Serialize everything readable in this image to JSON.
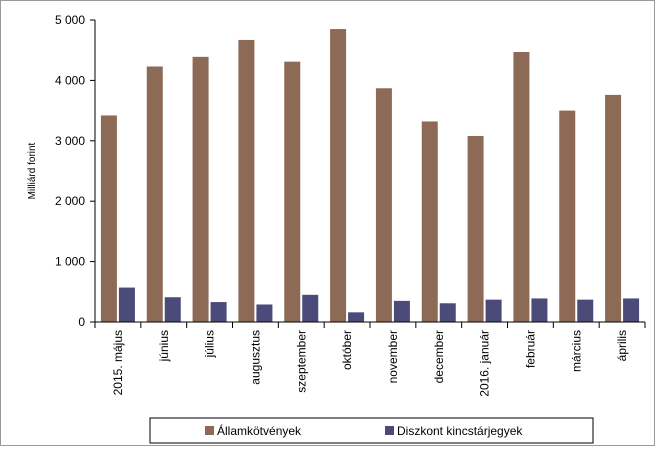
{
  "chart_data": {
    "type": "bar",
    "title": "",
    "xlabel": "",
    "ylabel": "Milliárd forint",
    "ylim": [
      0,
      5000
    ],
    "yticks": [
      0,
      1000,
      2000,
      3000,
      4000,
      5000
    ],
    "ytick_labels": [
      "0",
      "1 000",
      "2 000",
      "3 000",
      "4 000",
      "5 000"
    ],
    "grid": false,
    "legend_position": "bottom",
    "categories": [
      "2015. május",
      "június",
      "július",
      "augusztus",
      "szeptember",
      "október",
      "november",
      "december",
      "2016. január",
      "február",
      "március",
      "április"
    ],
    "series": [
      {
        "name": "Államkötvények",
        "color": "#8c6a55",
        "values": [
          3420,
          4230,
          4390,
          4670,
          4310,
          4850,
          3870,
          3320,
          3080,
          4470,
          3500,
          3760
        ]
      },
      {
        "name": "Diszkont kincstárjegyek",
        "color": "#4b4a78",
        "values": [
          570,
          410,
          330,
          290,
          450,
          160,
          350,
          310,
          370,
          390,
          370,
          390
        ]
      }
    ]
  }
}
